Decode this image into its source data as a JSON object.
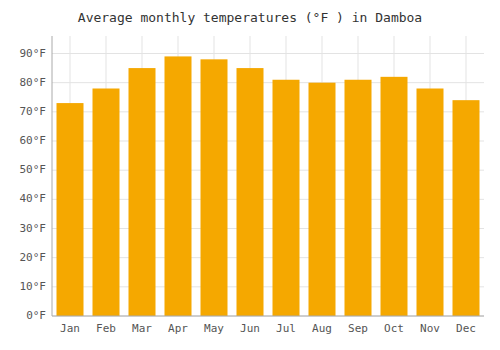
{
  "chart_data": {
    "type": "bar",
    "title": "Average monthly temperatures (°F ) in Damboa",
    "categories": [
      "Jan",
      "Feb",
      "Mar",
      "Apr",
      "May",
      "Jun",
      "Jul",
      "Aug",
      "Sep",
      "Oct",
      "Nov",
      "Dec"
    ],
    "values": [
      73,
      78,
      85,
      89,
      88,
      85,
      81,
      80,
      81,
      82,
      78,
      74
    ],
    "color": "#F5A800",
    "ylim": [
      0,
      96
    ],
    "yticks": [
      {
        "value": 0,
        "label": "0°F"
      },
      {
        "value": 10,
        "label": "10°F"
      },
      {
        "value": 20,
        "label": "20°F"
      },
      {
        "value": 30,
        "label": "30°F"
      },
      {
        "value": 40,
        "label": "40°F"
      },
      {
        "value": 50,
        "label": "50°F"
      },
      {
        "value": 60,
        "label": "60°F"
      },
      {
        "value": 70,
        "label": "70°F"
      },
      {
        "value": 80,
        "label": "80°F"
      },
      {
        "value": 90,
        "label": "90°F"
      }
    ],
    "grid": true
  }
}
